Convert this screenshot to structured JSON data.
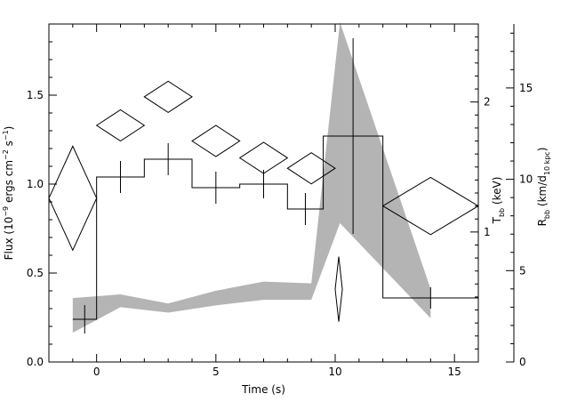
{
  "chart_data": {
    "type": "line",
    "title": "",
    "xlabel": "Time (s)",
    "xlim": [
      -2,
      16
    ],
    "x_ticks": [
      0,
      5,
      10,
      15
    ],
    "ylabel_left": {
      "main": "Flux (10",
      "sup1": "−9",
      "mid": " ergs cm",
      "sup2": "−2",
      "mid2": " s",
      "sup3": "−1",
      "end": ")"
    },
    "ylim_left": [
      0,
      1.9
    ],
    "y_ticks_left": [
      0.0,
      0.5,
      1.0,
      1.5
    ],
    "y_tick_labels_left": [
      "0.0",
      "0.5",
      "1.0",
      "1.5"
    ],
    "ylabel_T": {
      "main": "T",
      "sub": "bb",
      "end": " (keV)"
    },
    "T_ticks": [
      1,
      2
    ],
    "T_ylim": [
      0,
      2.6
    ],
    "ylabel_R": {
      "main": "R",
      "sub": "bb",
      "mid": " (km/d",
      "sub2": "10 kpc",
      "end": ")"
    },
    "R_ticks": [
      0,
      5,
      10,
      15
    ],
    "R_ylim": [
      0,
      18.5
    ],
    "grid": false,
    "series": [
      {
        "style": "histogram",
        "unit": "flux",
        "color": "#000000",
        "bins": [
          {
            "x0": -1,
            "x1": 0,
            "y": 0.24,
            "yerr": 0.08
          },
          {
            "x0": 0,
            "x1": 2,
            "y": 1.04,
            "yerr": 0.09
          },
          {
            "x0": 2,
            "x1": 4,
            "y": 1.14,
            "yerr": 0.09
          },
          {
            "x0": 4,
            "x1": 6,
            "y": 0.98,
            "yerr": 0.09
          },
          {
            "x0": 6,
            "x1": 8,
            "y": 1.0,
            "yerr": 0.08
          },
          {
            "x0": 8,
            "x1": 9.5,
            "y": 0.86,
            "yerr": 0.09
          },
          {
            "x0": 9.5,
            "x1": 12,
            "y": 1.27,
            "yerr": 0.55
          },
          {
            "x0": 12,
            "x1": 16,
            "y": 0.36,
            "yerr": 0.06
          }
        ]
      },
      {
        "style": "diamonds",
        "unit": "keV",
        "color": "#000000",
        "points": [
          {
            "x": -1,
            "xerr": 1.0,
            "y": 1.26,
            "yerr": 0.4
          },
          {
            "x": 1,
            "xerr": 1.0,
            "y": 1.82,
            "yerr": 0.12
          },
          {
            "x": 3,
            "xerr": 1.0,
            "y": 2.04,
            "yerr": 0.12
          },
          {
            "x": 5,
            "xerr": 1.0,
            "y": 1.7,
            "yerr": 0.12
          },
          {
            "x": 7,
            "xerr": 1.0,
            "y": 1.57,
            "yerr": 0.12
          },
          {
            "x": 9,
            "xerr": 1.0,
            "y": 1.49,
            "yerr": 0.12
          },
          {
            "x": 10.15,
            "xerr": 0.15,
            "y": 0.56,
            "yerr": 0.25
          },
          {
            "x": 14,
            "xerr": 2.0,
            "y": 1.2,
            "yerr": 0.22
          }
        ]
      },
      {
        "style": "band",
        "unit": "km/d10kpc",
        "color": "#b4b4b4",
        "points": [
          {
            "x": -1,
            "lo": 1.6,
            "hi": 3.5
          },
          {
            "x": 1,
            "lo": 3.0,
            "hi": 3.7
          },
          {
            "x": 3,
            "lo": 2.7,
            "hi": 3.2
          },
          {
            "x": 5,
            "lo": 3.1,
            "hi": 3.9
          },
          {
            "x": 7,
            "lo": 3.4,
            "hi": 4.4
          },
          {
            "x": 9,
            "lo": 3.4,
            "hi": 4.3
          },
          {
            "x": 10.2,
            "lo": 7.6,
            "hi": 18.6
          },
          {
            "x": 14,
            "lo": 2.4,
            "hi": 4.0
          }
        ]
      }
    ]
  }
}
